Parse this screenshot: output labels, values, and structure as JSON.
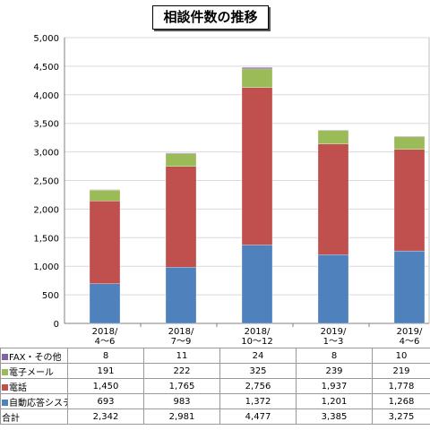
{
  "chart_data": {
    "type": "bar",
    "stacked": true,
    "title": "相談件数の推移",
    "categories": [
      "2018/\n4～6",
      "2018/\n7～9",
      "2018/\n10～12",
      "2019/\n1～3",
      "2019/\n4～6"
    ],
    "series": [
      {
        "name": "自動応答システム",
        "color": "#4f81bd",
        "values": [
          693,
          983,
          1372,
          1201,
          1268
        ]
      },
      {
        "name": "電話",
        "color": "#c0504d",
        "values": [
          1450,
          1765,
          2756,
          1937,
          1778
        ]
      },
      {
        "name": "電子メール",
        "color": "#9bbb59",
        "values": [
          191,
          222,
          325,
          239,
          219
        ]
      },
      {
        "name": "FAX・その他",
        "color": "#8064a2",
        "values": [
          8,
          11,
          24,
          8,
          10
        ]
      }
    ],
    "totals": {
      "name": "合計",
      "values": [
        "2,342",
        "2,981",
        "4,477",
        "3,385",
        "3,275"
      ]
    },
    "ylim": [
      0,
      5000
    ],
    "yticks": [
      "0",
      "500",
      "1,000",
      "1,500",
      "2,000",
      "2,500",
      "3,000",
      "3,500",
      "4,000",
      "4,500",
      "5,000"
    ],
    "grid": true,
    "xlabel": "",
    "ylabel": "",
    "table_rows": [
      {
        "label": "FAX・その他",
        "color": "#8064a2",
        "values": [
          "8",
          "11",
          "24",
          "8",
          "10"
        ]
      },
      {
        "label": "電子メール",
        "color": "#9bbb59",
        "values": [
          "191",
          "222",
          "325",
          "239",
          "219"
        ]
      },
      {
        "label": "電話",
        "color": "#c0504d",
        "values": [
          "1,450",
          "1,765",
          "2,756",
          "1,937",
          "1,778"
        ]
      },
      {
        "label": "自動応答システム",
        "color": "#4f81bd",
        "values": [
          "693",
          "983",
          "1,372",
          "1,201",
          "1,268"
        ]
      },
      {
        "label": "合計",
        "color": "",
        "values": [
          "2,342",
          "2,981",
          "4,477",
          "3,385",
          "3,275"
        ]
      }
    ]
  }
}
